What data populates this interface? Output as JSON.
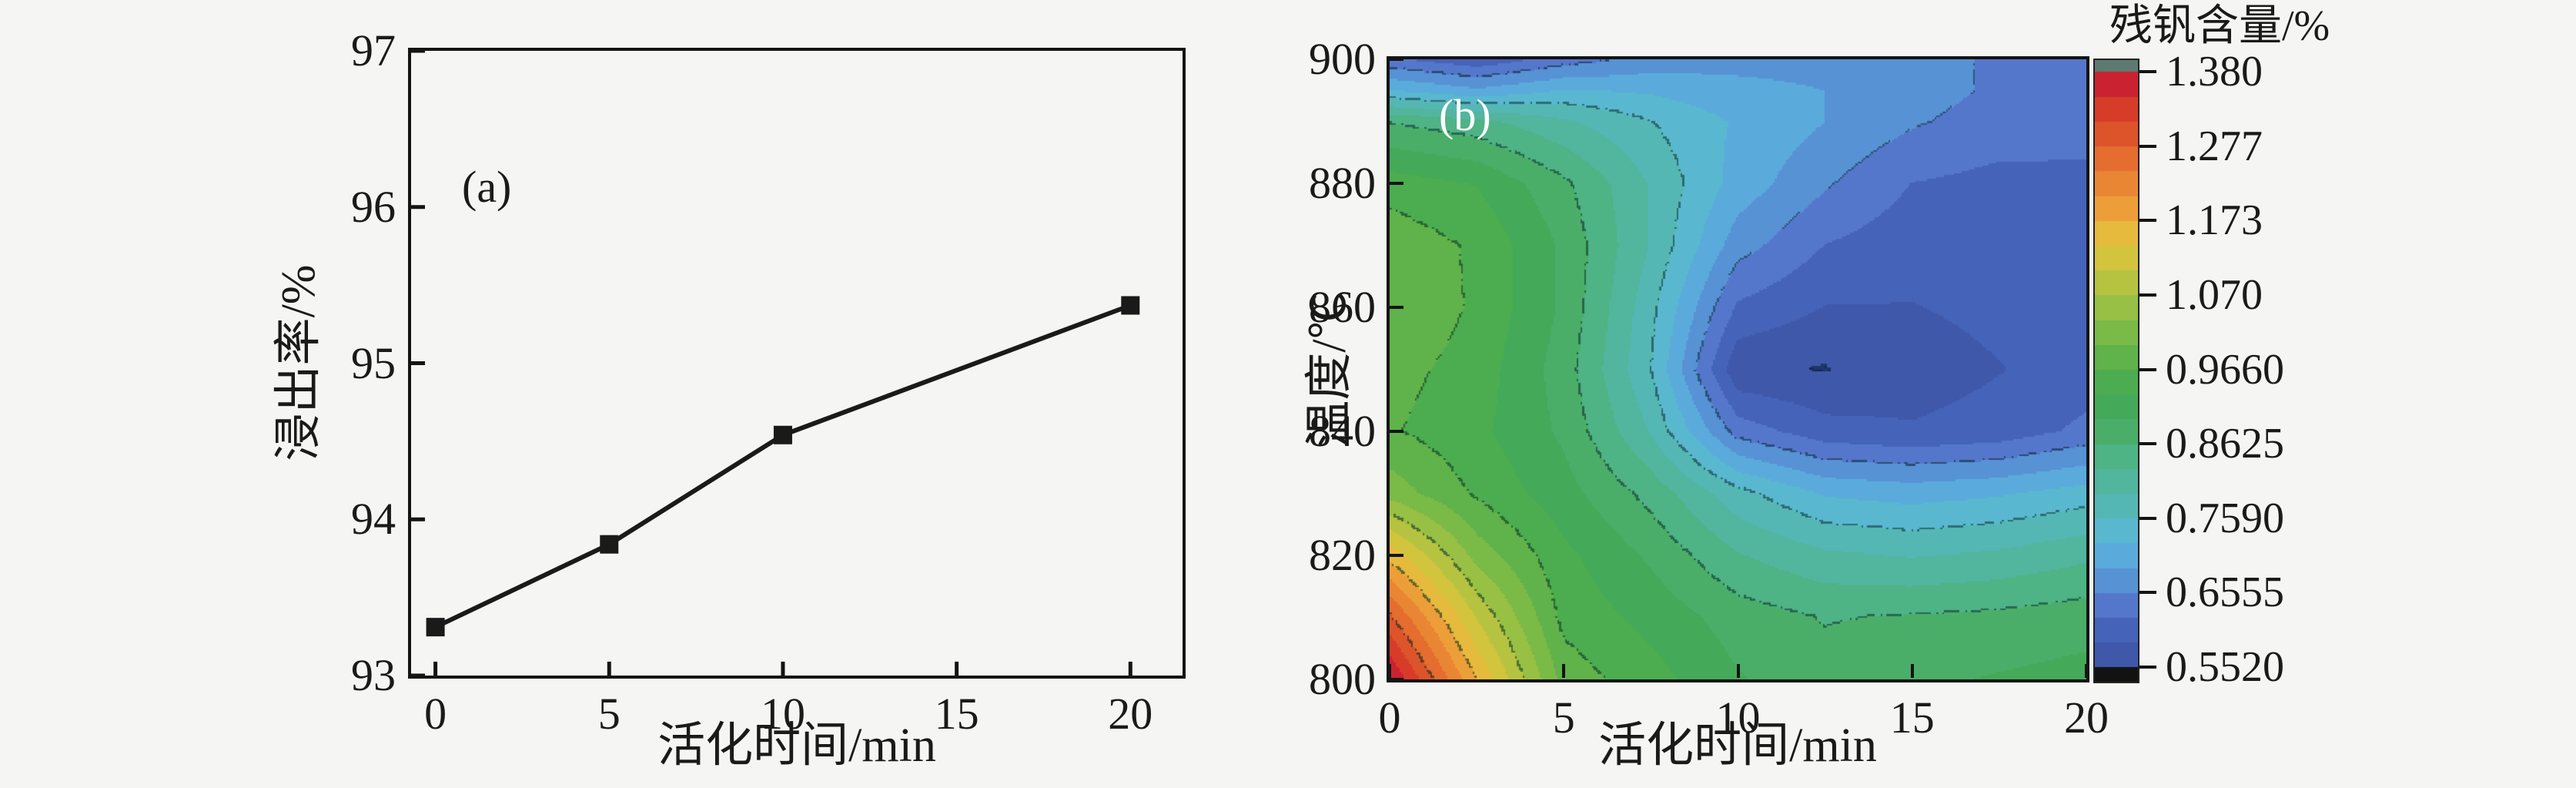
{
  "figure": {
    "background": "#f5f5f3",
    "text_color": "#1a1a1a"
  },
  "panel_a": {
    "label": "(a)",
    "xlabel": "活化时间/min",
    "ylabel": "浸出率/%",
    "xtick_labels": [
      "0",
      "5",
      "10",
      "15",
      "20"
    ],
    "ytick_labels": [
      "93",
      "94",
      "95",
      "96",
      "97"
    ]
  },
  "panel_b": {
    "label": "(b)",
    "xlabel": "活化时间/min",
    "ylabel": "温度/℃",
    "xtick_labels": [
      "0",
      "5",
      "10",
      "15",
      "20"
    ],
    "ytick_labels": [
      "800",
      "820",
      "840",
      "860",
      "880",
      "900"
    ]
  },
  "colorbar": {
    "title": "残钒含量/%",
    "tick_labels": [
      "1.380",
      "1.277",
      "1.173",
      "1.070",
      "0.9660",
      "0.8625",
      "0.7590",
      "0.6555",
      "0.5520"
    ],
    "over_color": "#5d7a70",
    "under_color": "#121212"
  },
  "chart_data": [
    {
      "type": "line",
      "title": "(a)",
      "xlabel": "活化时间/min",
      "ylabel": "浸出率/%",
      "x": [
        0,
        5,
        10,
        20
      ],
      "y": [
        93.31,
        93.84,
        94.54,
        95.37
      ],
      "xticks": [
        0,
        5,
        10,
        15,
        20
      ],
      "yticks": [
        93,
        94,
        95,
        96,
        97
      ],
      "xlim": [
        -0.7,
        21.5
      ],
      "ylim": [
        93,
        97
      ],
      "marker": "square",
      "marker_size": 24,
      "line_color": "#1a1a1a",
      "line_width": 6,
      "grid": false
    },
    {
      "type": "heatmap",
      "subtype": "filled-contour",
      "title": "(b)",
      "xlabel": "活化时间/min",
      "ylabel": "温度/℃",
      "colorbar_label": "残钒含量/%",
      "x": [
        0,
        2.5,
        5,
        7.5,
        10,
        12.5,
        15,
        17.5,
        20
      ],
      "y": [
        900,
        895,
        890,
        880,
        870,
        860,
        850,
        840,
        830,
        820,
        810,
        800
      ],
      "values": [
        [
          0.63,
          0.6,
          0.64,
          0.67,
          0.68,
          0.68,
          0.67,
          0.65,
          0.64
        ],
        [
          0.73,
          0.7,
          0.73,
          0.72,
          0.7,
          0.69,
          0.67,
          0.65,
          0.64
        ],
        [
          0.86,
          0.84,
          0.8,
          0.76,
          0.72,
          0.69,
          0.66,
          0.64,
          0.63
        ],
        [
          0.95,
          0.93,
          0.87,
          0.79,
          0.71,
          0.66,
          0.62,
          0.61,
          0.615
        ],
        [
          0.99,
          0.96,
          0.89,
          0.79,
          0.67,
          0.62,
          0.6,
          0.6,
          0.61
        ],
        [
          1.0,
          0.96,
          0.89,
          0.77,
          0.615,
          0.585,
          0.585,
          0.595,
          0.605
        ],
        [
          0.98,
          0.95,
          0.88,
          0.76,
          0.558,
          0.55,
          0.57,
          0.585,
          0.6
        ],
        [
          0.97,
          0.94,
          0.89,
          0.79,
          0.64,
          0.6,
          0.59,
          0.6,
          0.63
        ],
        [
          1.02,
          0.96,
          0.91,
          0.85,
          0.77,
          0.72,
          0.71,
          0.72,
          0.74
        ],
        [
          1.16,
          1.02,
          0.94,
          0.89,
          0.83,
          0.8,
          0.79,
          0.8,
          0.82
        ],
        [
          1.28,
          1.1,
          0.955,
          0.92,
          0.88,
          0.86,
          0.865,
          0.87,
          0.88
        ],
        [
          1.38,
          1.17,
          0.985,
          0.945,
          0.9,
          0.875,
          0.89,
          0.9,
          0.91
        ]
      ],
      "xticks": [
        0,
        5,
        10,
        15,
        20
      ],
      "yticks": [
        800,
        820,
        840,
        860,
        880,
        900
      ],
      "xlim": [
        0,
        20
      ],
      "ylim": [
        800,
        900
      ],
      "zlim": [
        0.552,
        1.38
      ],
      "contour_levels": [
        0.552,
        0.6555,
        0.759,
        0.8625,
        0.966,
        1.07,
        1.173,
        1.277,
        1.38
      ],
      "band_step": 0.0345,
      "colormap": {
        "band_colors": [
          "#3f58aa",
          "#4563b8",
          "#5577cb",
          "#5792d5",
          "#5aabdb",
          "#59b8cf",
          "#55b7b3",
          "#52b59d",
          "#4eb385",
          "#4aae69",
          "#44a958",
          "#4bad4f",
          "#60b24a",
          "#7aba47",
          "#97c044",
          "#b6c340",
          "#d2c43d",
          "#e6ba3c",
          "#ec9f38",
          "#e98634",
          "#e46d2f",
          "#dd542a",
          "#d63c28",
          "#cb2231"
        ],
        "under_plot": "#1e3570",
        "under_bar": "#121212",
        "over": "#5d7a70"
      },
      "grid": false,
      "legend": "colorbar-right"
    }
  ]
}
